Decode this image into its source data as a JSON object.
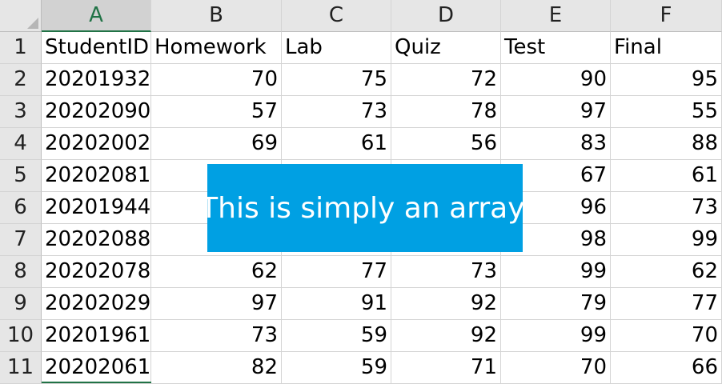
{
  "columns": [
    "A",
    "B",
    "C",
    "D",
    "E",
    "F"
  ],
  "rows": [
    {
      "n": "1",
      "cells": [
        "StudentID",
        "Homework",
        "Lab",
        "Quiz",
        "Test",
        "Final"
      ]
    },
    {
      "n": "2",
      "cells": [
        "20201932",
        "70",
        "75",
        "72",
        "90",
        "95"
      ]
    },
    {
      "n": "3",
      "cells": [
        "20202090",
        "57",
        "73",
        "78",
        "97",
        "55"
      ]
    },
    {
      "n": "4",
      "cells": [
        "20202002",
        "69",
        "61",
        "56",
        "83",
        "88"
      ]
    },
    {
      "n": "5",
      "cells": [
        "20202081",
        "",
        "",
        "",
        "67",
        "61"
      ]
    },
    {
      "n": "6",
      "cells": [
        "20201944",
        "",
        "",
        "",
        "96",
        "73"
      ]
    },
    {
      "n": "7",
      "cells": [
        "20202088",
        "",
        "",
        "",
        "98",
        "99"
      ]
    },
    {
      "n": "8",
      "cells": [
        "20202078",
        "62",
        "77",
        "73",
        "99",
        "62"
      ]
    },
    {
      "n": "9",
      "cells": [
        "20202029",
        "97",
        "91",
        "92",
        "79",
        "77"
      ]
    },
    {
      "n": "10",
      "cells": [
        "20201961",
        "73",
        "59",
        "92",
        "99",
        "70"
      ]
    },
    {
      "n": "11",
      "cells": [
        "20202061",
        "82",
        "59",
        "71",
        "70",
        "66"
      ]
    }
  ],
  "overlay": {
    "text": "This is simply an array."
  },
  "colors": {
    "header_bg": "#e6e6e6",
    "selected_accent": "#217346",
    "overlay_bg": "#00a0e3"
  },
  "selected_column": "A"
}
